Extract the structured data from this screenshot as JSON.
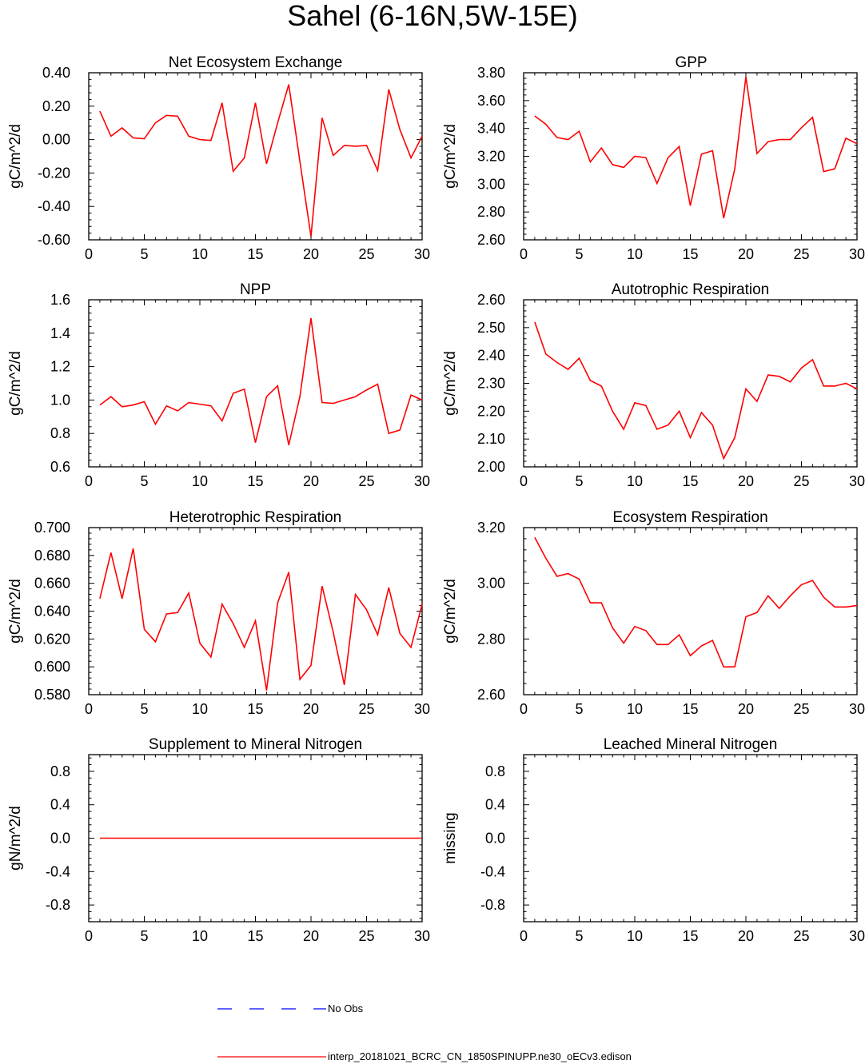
{
  "page": {
    "title": "Sahel (6-16N,5W-15E)"
  },
  "colors": {
    "model": "#ff0000",
    "obs": "#0000ff",
    "axis": "#000000"
  },
  "legend": {
    "obs_label": "No Obs",
    "model_label": "interp_20181021_BCRC_CN_1850SPINUPP.ne30_oECv3.edison"
  },
  "chart_data": [
    {
      "type": "line",
      "title": "Net Ecosystem Exchange",
      "ylabel": "gC/m^2/d",
      "xlim": [
        0,
        30
      ],
      "ylim": [
        -0.6,
        0.4
      ],
      "xticks": [
        0,
        5,
        10,
        15,
        20,
        25,
        30
      ],
      "xticklabels": [
        "0",
        "5",
        "10",
        "15",
        "20",
        "25",
        "30"
      ],
      "yticks": [
        -0.6,
        -0.4,
        -0.2,
        0.0,
        0.2,
        0.4
      ],
      "yticklabels": [
        "-0.60",
        "-0.40",
        "-0.20",
        "0.00",
        "0.20",
        "0.40"
      ],
      "title_align": "center",
      "series": [
        {
          "name": "model",
          "x": [
            1,
            2,
            3,
            4,
            5,
            6,
            7,
            8,
            9,
            10,
            11,
            12,
            13,
            14,
            15,
            16,
            17,
            18,
            19,
            20,
            21,
            22,
            23,
            24,
            25,
            26,
            27,
            28,
            29,
            30
          ],
          "values": [
            0.17,
            0.02,
            0.07,
            0.01,
            0.005,
            0.1,
            0.145,
            0.14,
            0.02,
            0.0,
            -0.005,
            0.22,
            -0.19,
            -0.11,
            0.22,
            -0.145,
            0.1,
            0.33,
            -0.13,
            -0.58,
            0.13,
            -0.095,
            -0.035,
            -0.04,
            -0.035,
            -0.185,
            0.3,
            0.06,
            -0.11,
            0.02
          ]
        }
      ]
    },
    {
      "type": "line",
      "title": "GPP",
      "ylabel": "gC/m^2/d",
      "xlim": [
        0,
        30
      ],
      "ylim": [
        2.6,
        3.8
      ],
      "xticks": [
        0,
        5,
        10,
        15,
        20,
        25,
        30
      ],
      "xticklabels": [
        "0",
        "5",
        "10",
        "15",
        "20",
        "25",
        "30"
      ],
      "yticks": [
        2.6,
        2.8,
        3.0,
        3.2,
        3.4,
        3.6,
        3.8
      ],
      "yticklabels": [
        "2.60",
        "2.80",
        "3.00",
        "3.20",
        "3.40",
        "3.60",
        "3.80"
      ],
      "title_align": "shifted",
      "series": [
        {
          "name": "model",
          "x": [
            1,
            2,
            3,
            4,
            5,
            6,
            7,
            8,
            9,
            10,
            11,
            12,
            13,
            14,
            15,
            16,
            17,
            18,
            19,
            20,
            21,
            22,
            23,
            24,
            25,
            26,
            27,
            28,
            29,
            30
          ],
          "values": [
            3.49,
            3.43,
            3.335,
            3.32,
            3.38,
            3.16,
            3.26,
            3.14,
            3.12,
            3.2,
            3.19,
            3.005,
            3.19,
            3.27,
            2.845,
            3.215,
            3.24,
            2.755,
            3.11,
            3.77,
            3.22,
            3.305,
            3.32,
            3.32,
            3.405,
            3.48,
            3.09,
            3.11,
            3.33,
            3.29
          ]
        }
      ]
    },
    {
      "type": "line",
      "title": "NPP",
      "ylabel": "gC/m^2/d",
      "xlim": [
        0,
        30
      ],
      "ylim": [
        0.6,
        1.6
      ],
      "xticks": [
        0,
        5,
        10,
        15,
        20,
        25,
        30
      ],
      "xticklabels": [
        "0",
        "5",
        "10",
        "15",
        "20",
        "25",
        "30"
      ],
      "yticks": [
        0.6,
        0.8,
        1.0,
        1.2,
        1.4,
        1.6
      ],
      "yticklabels": [
        "0.6",
        "0.8",
        "1.0",
        "1.2",
        "1.4",
        "1.6"
      ],
      "title_align": "center",
      "series": [
        {
          "name": "model",
          "x": [
            1,
            2,
            3,
            4,
            5,
            6,
            7,
            8,
            9,
            10,
            11,
            12,
            13,
            14,
            15,
            16,
            17,
            18,
            19,
            20,
            21,
            22,
            23,
            24,
            25,
            26,
            27,
            28,
            29,
            30
          ],
          "values": [
            0.97,
            1.02,
            0.96,
            0.97,
            0.99,
            0.855,
            0.965,
            0.935,
            0.985,
            0.975,
            0.965,
            0.875,
            1.04,
            1.065,
            0.745,
            1.02,
            1.085,
            0.73,
            1.02,
            1.49,
            0.985,
            0.98,
            1.0,
            1.02,
            1.06,
            1.095,
            0.8,
            0.82,
            1.03,
            1.0
          ]
        }
      ]
    },
    {
      "type": "line",
      "title": "Autotrophic Respiration",
      "ylabel": "gC/m^2/d",
      "xlim": [
        0,
        30
      ],
      "ylim": [
        2.0,
        2.6
      ],
      "xticks": [
        0,
        5,
        10,
        15,
        20,
        25,
        30
      ],
      "xticklabels": [
        "0",
        "5",
        "10",
        "15",
        "20",
        "25",
        "30"
      ],
      "yticks": [
        2.0,
        2.1,
        2.2,
        2.3,
        2.4,
        2.5,
        2.6
      ],
      "yticklabels": [
        "2.00",
        "2.10",
        "2.20",
        "2.30",
        "2.40",
        "2.50",
        "2.60"
      ],
      "title_align": "center",
      "series": [
        {
          "name": "model",
          "x": [
            1,
            2,
            3,
            4,
            5,
            6,
            7,
            8,
            9,
            10,
            11,
            12,
            13,
            14,
            15,
            16,
            17,
            18,
            19,
            20,
            21,
            22,
            23,
            24,
            25,
            26,
            27,
            28,
            29,
            30
          ],
          "values": [
            2.52,
            2.405,
            2.375,
            2.35,
            2.39,
            2.31,
            2.29,
            2.2,
            2.135,
            2.23,
            2.22,
            2.135,
            2.15,
            2.2,
            2.105,
            2.195,
            2.15,
            2.03,
            2.105,
            2.28,
            2.235,
            2.33,
            2.325,
            2.305,
            2.355,
            2.385,
            2.29,
            2.29,
            2.3,
            2.28
          ]
        }
      ]
    },
    {
      "type": "line",
      "title": "Heterotrophic Respiration",
      "ylabel": "gC/m^2/d",
      "xlim": [
        0,
        30
      ],
      "ylim": [
        0.58,
        0.7
      ],
      "xticks": [
        0,
        5,
        10,
        15,
        20,
        25,
        30
      ],
      "xticklabels": [
        "0",
        "5",
        "10",
        "15",
        "20",
        "25",
        "30"
      ],
      "yticks": [
        0.58,
        0.6,
        0.62,
        0.64,
        0.66,
        0.68,
        0.7
      ],
      "yticklabels": [
        "0.580",
        "0.600",
        "0.620",
        "0.640",
        "0.660",
        "0.680",
        "0.700"
      ],
      "title_align": "center",
      "series": [
        {
          "name": "model",
          "x": [
            1,
            2,
            3,
            4,
            5,
            6,
            7,
            8,
            9,
            10,
            11,
            12,
            13,
            14,
            15,
            16,
            17,
            18,
            19,
            20,
            21,
            22,
            23,
            24,
            25,
            26,
            27,
            28,
            29,
            30
          ],
          "values": [
            0.649,
            0.682,
            0.649,
            0.685,
            0.627,
            0.618,
            0.638,
            0.639,
            0.653,
            0.617,
            0.607,
            0.645,
            0.631,
            0.614,
            0.633,
            0.583,
            0.646,
            0.668,
            0.591,
            0.601,
            0.658,
            0.625,
            0.587,
            0.652,
            0.641,
            0.623,
            0.657,
            0.624,
            0.614,
            0.645
          ]
        }
      ]
    },
    {
      "type": "line",
      "title": "Ecosystem Respiration",
      "ylabel": "gC/m^2/d",
      "xlim": [
        0,
        30
      ],
      "ylim": [
        2.6,
        3.2
      ],
      "xticks": [
        0,
        5,
        10,
        15,
        20,
        25,
        30
      ],
      "xticklabels": [
        "0",
        "5",
        "10",
        "15",
        "20",
        "25",
        "30"
      ],
      "yticks": [
        2.6,
        2.8,
        3.0,
        3.2
      ],
      "yticklabels": [
        "2.60",
        "2.80",
        "3.00",
        "3.20"
      ],
      "title_align": "center",
      "series": [
        {
          "name": "model",
          "x": [
            1,
            2,
            3,
            4,
            5,
            6,
            7,
            8,
            9,
            10,
            11,
            12,
            13,
            14,
            15,
            16,
            17,
            18,
            19,
            20,
            21,
            22,
            23,
            24,
            25,
            26,
            27,
            28,
            29,
            30
          ],
          "values": [
            3.165,
            3.09,
            3.025,
            3.035,
            3.015,
            2.93,
            2.93,
            2.84,
            2.785,
            2.845,
            2.83,
            2.78,
            2.78,
            2.815,
            2.74,
            2.775,
            2.795,
            2.7,
            2.7,
            2.88,
            2.895,
            2.955,
            2.91,
            2.955,
            2.995,
            3.01,
            2.95,
            2.915,
            2.915,
            2.92
          ]
        }
      ]
    },
    {
      "type": "line",
      "title": "Supplement to Mineral Nitrogen",
      "ylabel": "gN/m^2/d",
      "xlim": [
        0,
        30
      ],
      "ylim": [
        -1,
        1
      ],
      "xticks": [
        0,
        5,
        10,
        15,
        20,
        25,
        30
      ],
      "xticklabels": [
        "0",
        "5",
        "10",
        "15",
        "20",
        "25",
        "30"
      ],
      "yticks": [
        -0.8,
        -0.4,
        0.0,
        0.4,
        0.8
      ],
      "yticklabels": [
        "-0.8",
        "-0.4",
        "0.0",
        "0.4",
        "0.8"
      ],
      "title_align": "center",
      "series": [
        {
          "name": "model",
          "x": [
            1,
            30
          ],
          "values": [
            0.0,
            0.0
          ]
        }
      ]
    },
    {
      "type": "line",
      "title": "Leached Mineral Nitrogen",
      "ylabel": "missing",
      "xlim": [
        0,
        30
      ],
      "ylim": [
        -1,
        1
      ],
      "xticks": [
        0,
        5,
        10,
        15,
        20,
        25,
        30
      ],
      "xticklabels": [
        "0",
        "5",
        "10",
        "15",
        "20",
        "25",
        "30"
      ],
      "yticks": [
        -0.8,
        -0.4,
        0.0,
        0.4,
        0.8
      ],
      "yticklabels": [
        "-0.8",
        "-0.4",
        "0.0",
        "0.4",
        "0.8"
      ],
      "title_align": "center",
      "series": []
    }
  ]
}
